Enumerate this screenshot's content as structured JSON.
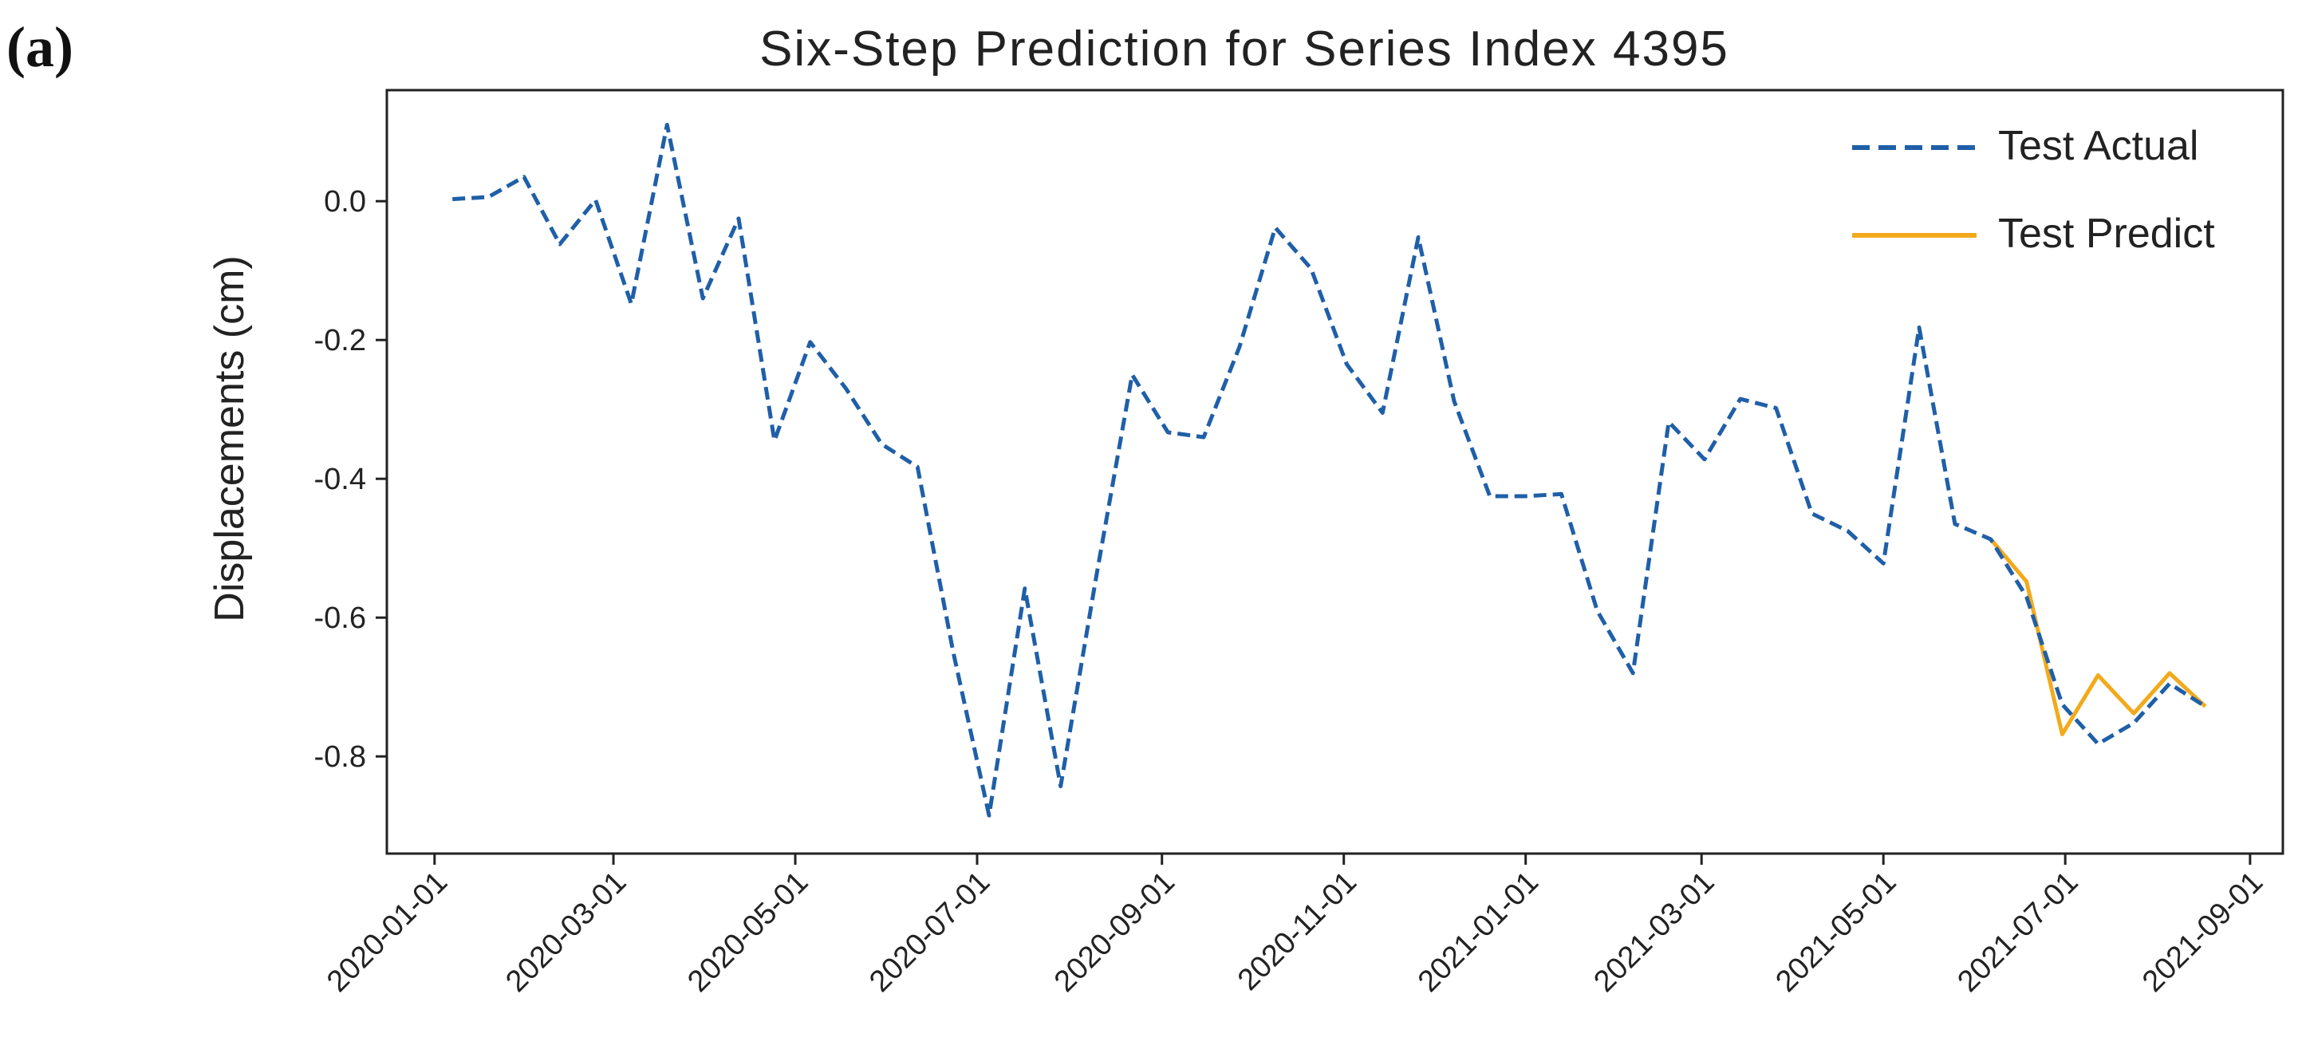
{
  "panel_label": "(a)",
  "chart_data": {
    "type": "line",
    "title": "Six-Step Prediction for Series Index 4395",
    "xlabel": "",
    "ylabel": "Displacements (cm)",
    "x_tick_labels": [
      "2020-01-01",
      "2020-03-01",
      "2020-05-01",
      "2020-07-01",
      "2020-09-01",
      "2020-11-01",
      "2021-01-01",
      "2021-03-01",
      "2021-05-01",
      "2021-07-01",
      "2021-09-01"
    ],
    "y_ticks": [
      0.0,
      -0.2,
      -0.4,
      -0.6,
      -0.8
    ],
    "y_tick_labels": [
      "0.0",
      "-0.2",
      "-0.4",
      "-0.6",
      "-0.8"
    ],
    "xlim": [
      "2019-12-16",
      "2021-09-12"
    ],
    "ylim": [
      -0.94,
      0.16
    ],
    "grid": false,
    "legend_position": "top-right",
    "series": [
      {
        "name": "Test Actual",
        "color": "#1f5fa8",
        "style": "dashed",
        "points": [
          [
            "2020-01-07",
            0.003
          ],
          [
            "2020-01-19",
            0.006
          ],
          [
            "2020-01-31",
            0.035
          ],
          [
            "2020-02-12",
            -0.062
          ],
          [
            "2020-02-24",
            0.002
          ],
          [
            "2020-03-07",
            -0.148
          ],
          [
            "2020-03-19",
            0.11
          ],
          [
            "2020-03-31",
            -0.14
          ],
          [
            "2020-04-12",
            -0.025
          ],
          [
            "2020-04-24",
            -0.345
          ],
          [
            "2020-05-06",
            -0.203
          ],
          [
            "2020-05-18",
            -0.27
          ],
          [
            "2020-05-30",
            -0.35
          ],
          [
            "2020-06-11",
            -0.383
          ],
          [
            "2020-06-23",
            -0.65
          ],
          [
            "2020-07-05",
            -0.885
          ],
          [
            "2020-07-17",
            -0.558
          ],
          [
            "2020-07-29",
            -0.843
          ],
          [
            "2020-08-10",
            -0.54
          ],
          [
            "2020-08-22",
            -0.25
          ],
          [
            "2020-09-03",
            -0.333
          ],
          [
            "2020-09-15",
            -0.34
          ],
          [
            "2020-09-27",
            -0.21
          ],
          [
            "2020-10-09",
            -0.038
          ],
          [
            "2020-10-21",
            -0.097
          ],
          [
            "2020-11-02",
            -0.235
          ],
          [
            "2020-11-14",
            -0.305
          ],
          [
            "2020-11-26",
            -0.052
          ],
          [
            "2020-12-08",
            -0.288
          ],
          [
            "2020-12-20",
            -0.425
          ],
          [
            "2021-01-01",
            -0.425
          ],
          [
            "2021-01-13",
            -0.422
          ],
          [
            "2021-01-25",
            -0.59
          ],
          [
            "2021-02-06",
            -0.68
          ],
          [
            "2021-02-18",
            -0.318
          ],
          [
            "2021-03-02",
            -0.372
          ],
          [
            "2021-03-14",
            -0.285
          ],
          [
            "2021-03-26",
            -0.298
          ],
          [
            "2021-04-07",
            -0.45
          ],
          [
            "2021-04-19",
            -0.475
          ],
          [
            "2021-05-01",
            -0.522
          ],
          [
            "2021-05-13",
            -0.182
          ],
          [
            "2021-05-25",
            -0.465
          ],
          [
            "2021-06-06",
            -0.487
          ],
          [
            "2021-06-18",
            -0.57
          ],
          [
            "2021-06-30",
            -0.725
          ],
          [
            "2021-07-12",
            -0.782
          ],
          [
            "2021-07-24",
            -0.752
          ],
          [
            "2021-08-05",
            -0.695
          ],
          [
            "2021-08-17",
            -0.728
          ]
        ]
      },
      {
        "name": "Test Predict",
        "color": "#f2aa1c",
        "style": "solid",
        "points": [
          [
            "2021-06-06",
            -0.487
          ],
          [
            "2021-06-18",
            -0.548
          ],
          [
            "2021-06-30",
            -0.768
          ],
          [
            "2021-07-12",
            -0.683
          ],
          [
            "2021-07-24",
            -0.738
          ],
          [
            "2021-08-05",
            -0.68
          ],
          [
            "2021-08-17",
            -0.728
          ]
        ]
      }
    ]
  }
}
